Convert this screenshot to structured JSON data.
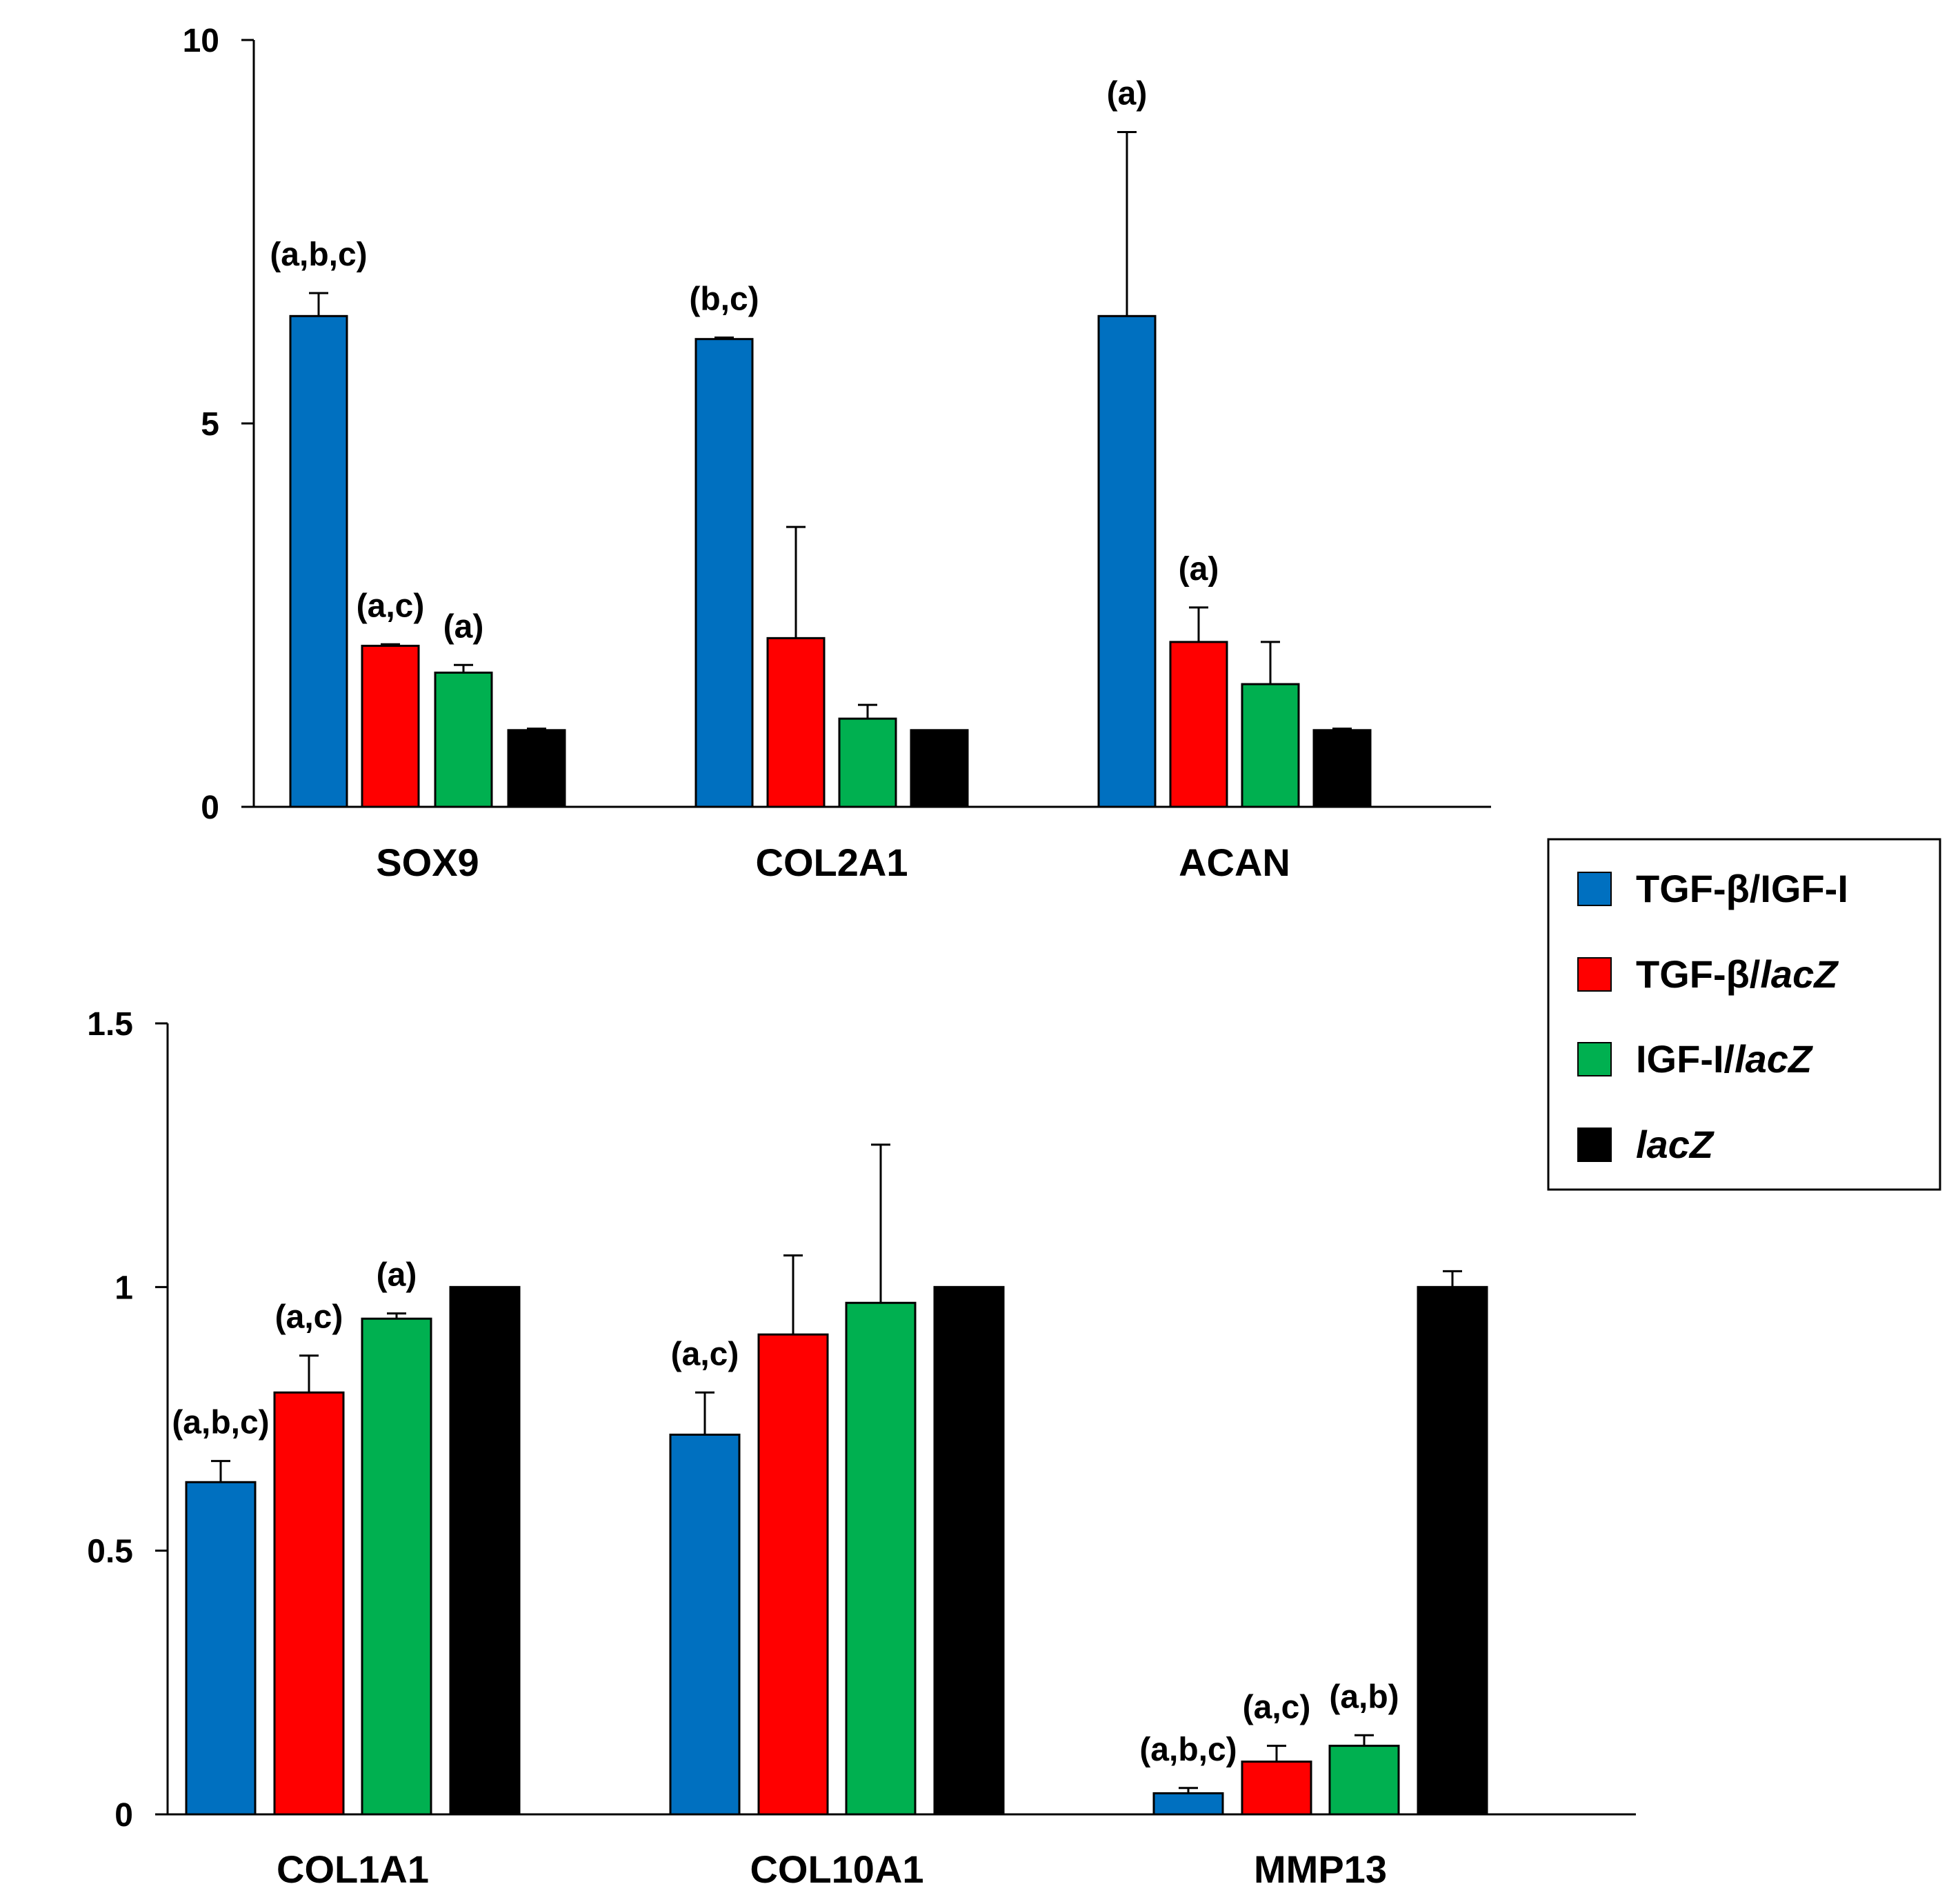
{
  "legend": {
    "entries": [
      {
        "prefix": "TGF-β/IGF-I",
        "italic": "",
        "color": "#0070C0"
      },
      {
        "prefix": "TGF-β/",
        "italic": "lacZ",
        "color": "#FF0000"
      },
      {
        "prefix": "IGF-I/",
        "italic": "lacZ",
        "color": "#00B050"
      },
      {
        "prefix": "",
        "italic": "lacZ",
        "color": "#000000"
      }
    ]
  },
  "chart_data": [
    {
      "type": "bar",
      "title": "",
      "xlabel": "",
      "ylabel": "",
      "ylim": [
        0,
        10
      ],
      "yticks": [
        "0",
        "5",
        "10"
      ],
      "categories": [
        "SOX9",
        "COL2A1",
        "ACAN"
      ],
      "series": [
        {
          "name": "TGF-β/IGF-I",
          "values": [
            6.4,
            6.1,
            6.4
          ],
          "errors": [
            0.3,
            0.02,
            2.4
          ],
          "annotations": [
            "(a,b,c)",
            "(b,c)",
            "(a)"
          ]
        },
        {
          "name": "TGF-β/lacZ",
          "values": [
            2.1,
            2.2,
            2.15
          ],
          "errors": [
            0.02,
            1.45,
            0.45
          ],
          "annotations": [
            "(a,c)",
            "",
            "(a)"
          ]
        },
        {
          "name": "IGF-I/lacZ",
          "values": [
            1.75,
            1.15,
            1.6
          ],
          "errors": [
            0.1,
            0.18,
            0.55
          ],
          "annotations": [
            "(a)",
            "",
            ""
          ]
        },
        {
          "name": "lacZ",
          "values": [
            1.0,
            1.0,
            1.0
          ],
          "errors": [
            0.02,
            0.0,
            0.02
          ],
          "annotations": [
            "",
            "",
            ""
          ]
        }
      ]
    },
    {
      "type": "bar",
      "title": "",
      "xlabel": "",
      "ylabel": "",
      "ylim": [
        0,
        1.5
      ],
      "yticks": [
        "0",
        "0.5",
        "1",
        "1.5"
      ],
      "categories": [
        "COL1A1",
        "COL10A1",
        "MMP13"
      ],
      "series": [
        {
          "name": "TGF-β/IGF-I",
          "values": [
            0.63,
            0.72,
            0.04
          ],
          "errors": [
            0.04,
            0.08,
            0.01
          ],
          "annotations": [
            "(a,b,c)",
            "(a,c)",
            "(a,b,c)"
          ]
        },
        {
          "name": "TGF-β/lacZ",
          "values": [
            0.8,
            0.91,
            0.1
          ],
          "errors": [
            0.07,
            0.15,
            0.03
          ],
          "annotations": [
            "(a,c)",
            "",
            "(a,c)"
          ]
        },
        {
          "name": "IGF-I/lacZ",
          "values": [
            0.94,
            0.97,
            0.13
          ],
          "errors": [
            0.01,
            0.3,
            0.02
          ],
          "annotations": [
            "(a)",
            "",
            "(a,b)"
          ]
        },
        {
          "name": "lacZ",
          "values": [
            1.0,
            1.0,
            1.0
          ],
          "errors": [
            0.0,
            0.0,
            0.03
          ],
          "annotations": [
            "",
            "",
            ""
          ]
        }
      ]
    }
  ]
}
